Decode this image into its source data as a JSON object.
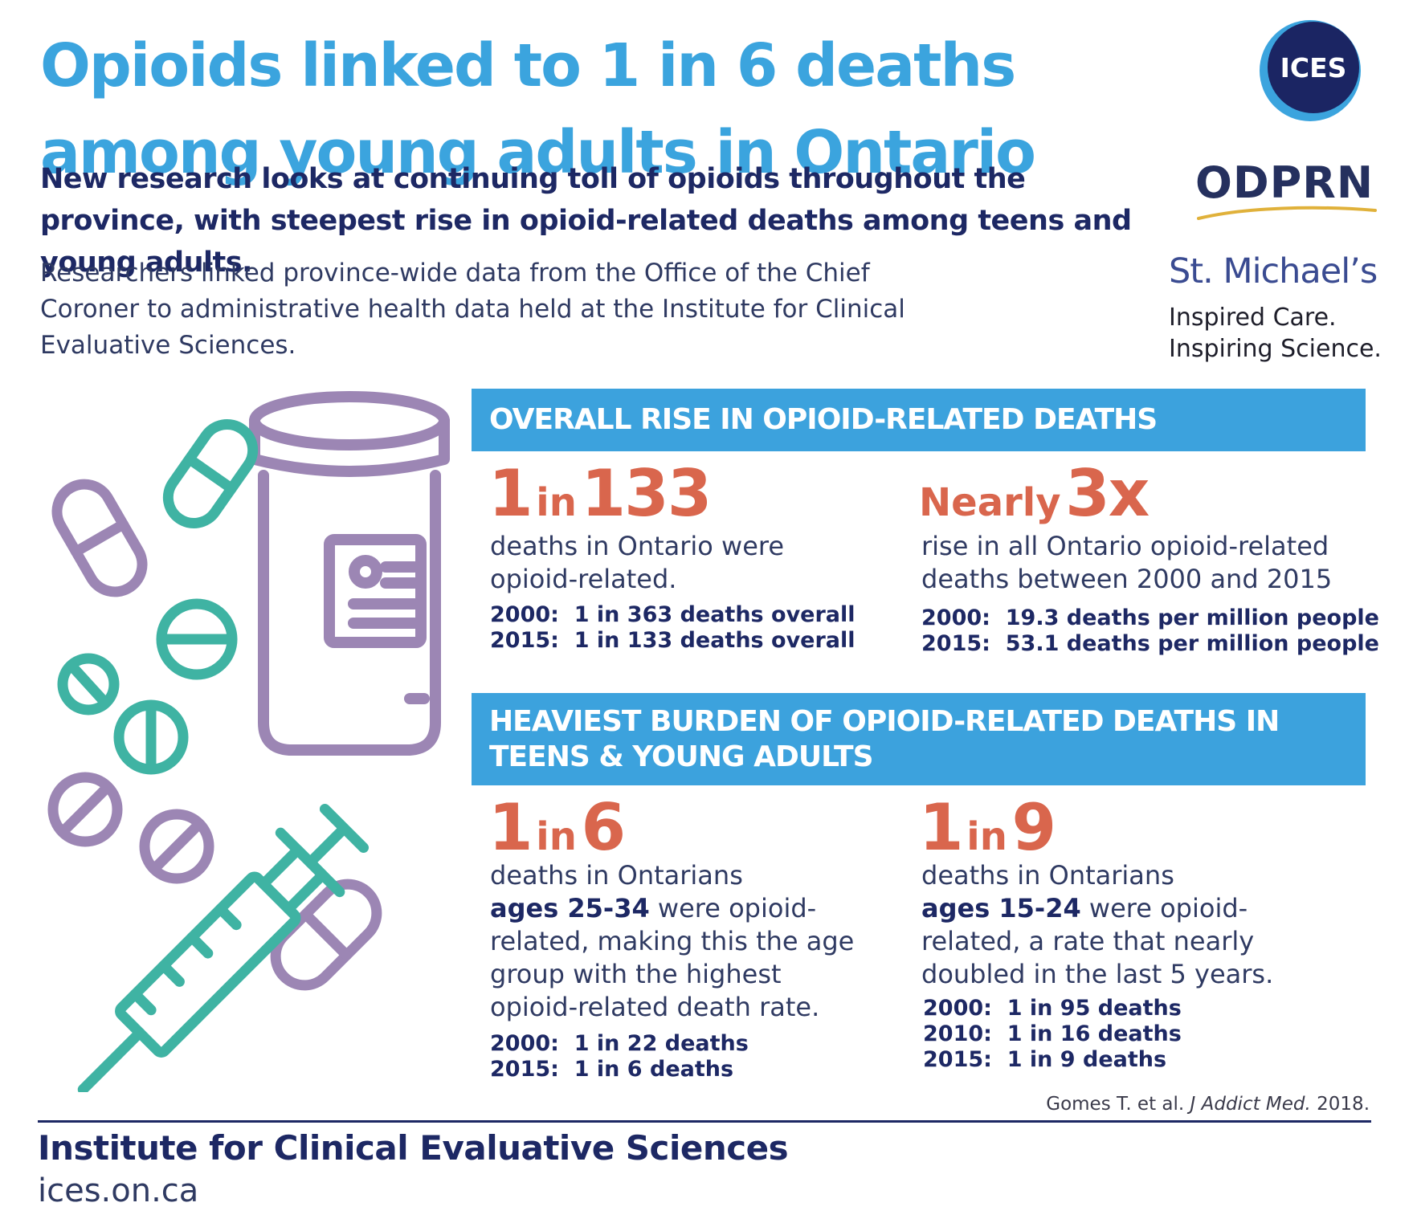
{
  "title": "Opioids linked to 1 in 6 deaths among young adults in Ontario",
  "subtitle": "New research looks at continuing toll of opioids throughout the province, with steepest rise in opioid-related deaths among teens and young adults.",
  "intro": "Researchers linked province-wide data from the Office of the Chief Coroner to administrative health data held at the Institute for Clinical Evaluative Sciences.",
  "logos": {
    "ices": "ICES",
    "odprn": "ODPRN",
    "stmichaels": "St. Michael’s",
    "tagline_1": "Inspired Care.",
    "tagline_2": "Inspiring Science."
  },
  "section1": {
    "heading": "OVERALL RISE IN OPIOID-RELATED DEATHS",
    "left": {
      "stat_a": "1",
      "stat_in": "in",
      "stat_b": "133",
      "desc": "deaths in Ontario were opioid-related.",
      "fig_1": "2000:  1 in 363 deaths overall",
      "fig_2": "2015:  1 in 133 deaths overall"
    },
    "right": {
      "stat_prefix": "Nearly",
      "stat_b": "3x",
      "desc": "rise in all Ontario opioid-related deaths between 2000 and 2015",
      "fig_1": "2000:  19.3 deaths per million people",
      "fig_2": "2015:  53.1 deaths per million people"
    }
  },
  "section2": {
    "heading_1": "HEAVIEST BURDEN OF OPIOID-RELATED DEATHS IN",
    "heading_2": "TEENS & YOUNG ADULTS",
    "left": {
      "stat_a": "1",
      "stat_in": "in",
      "stat_b": "6",
      "desc_1": "deaths in Ontarians",
      "desc_age": "ages 25-34",
      "desc_2": " were opioid-related, making this the age group with the highest opioid-related death rate.",
      "fig_1": "2000:  1 in 22 deaths",
      "fig_2": "2015:  1 in 6 deaths"
    },
    "right": {
      "stat_a": "1",
      "stat_in": "in",
      "stat_b": "9",
      "desc_1": "deaths in Ontarians",
      "desc_age": "ages 15-24",
      "desc_2": " were opioid-related, a rate that nearly doubled in the last 5 years.",
      "fig_1": "2000:  1 in 95 deaths",
      "fig_2": "2010:  1 in 16 deaths",
      "fig_3": "2015:  1 in 9 deaths"
    }
  },
  "citation": {
    "authors": "Gomes T. et al. ",
    "journal": "J Addict Med.",
    "year": " 2018."
  },
  "footer": {
    "name": "Institute for Clinical Evaluative Sciences",
    "url": "ices.on.ca"
  },
  "colors": {
    "title_blue": "#3ba4de",
    "navy": "#1d2864",
    "stat_orange": "#d9664d",
    "band_blue": "#3ca2dd",
    "pill_purple": "#9c86b4",
    "pill_teal": "#3fb3a3"
  }
}
